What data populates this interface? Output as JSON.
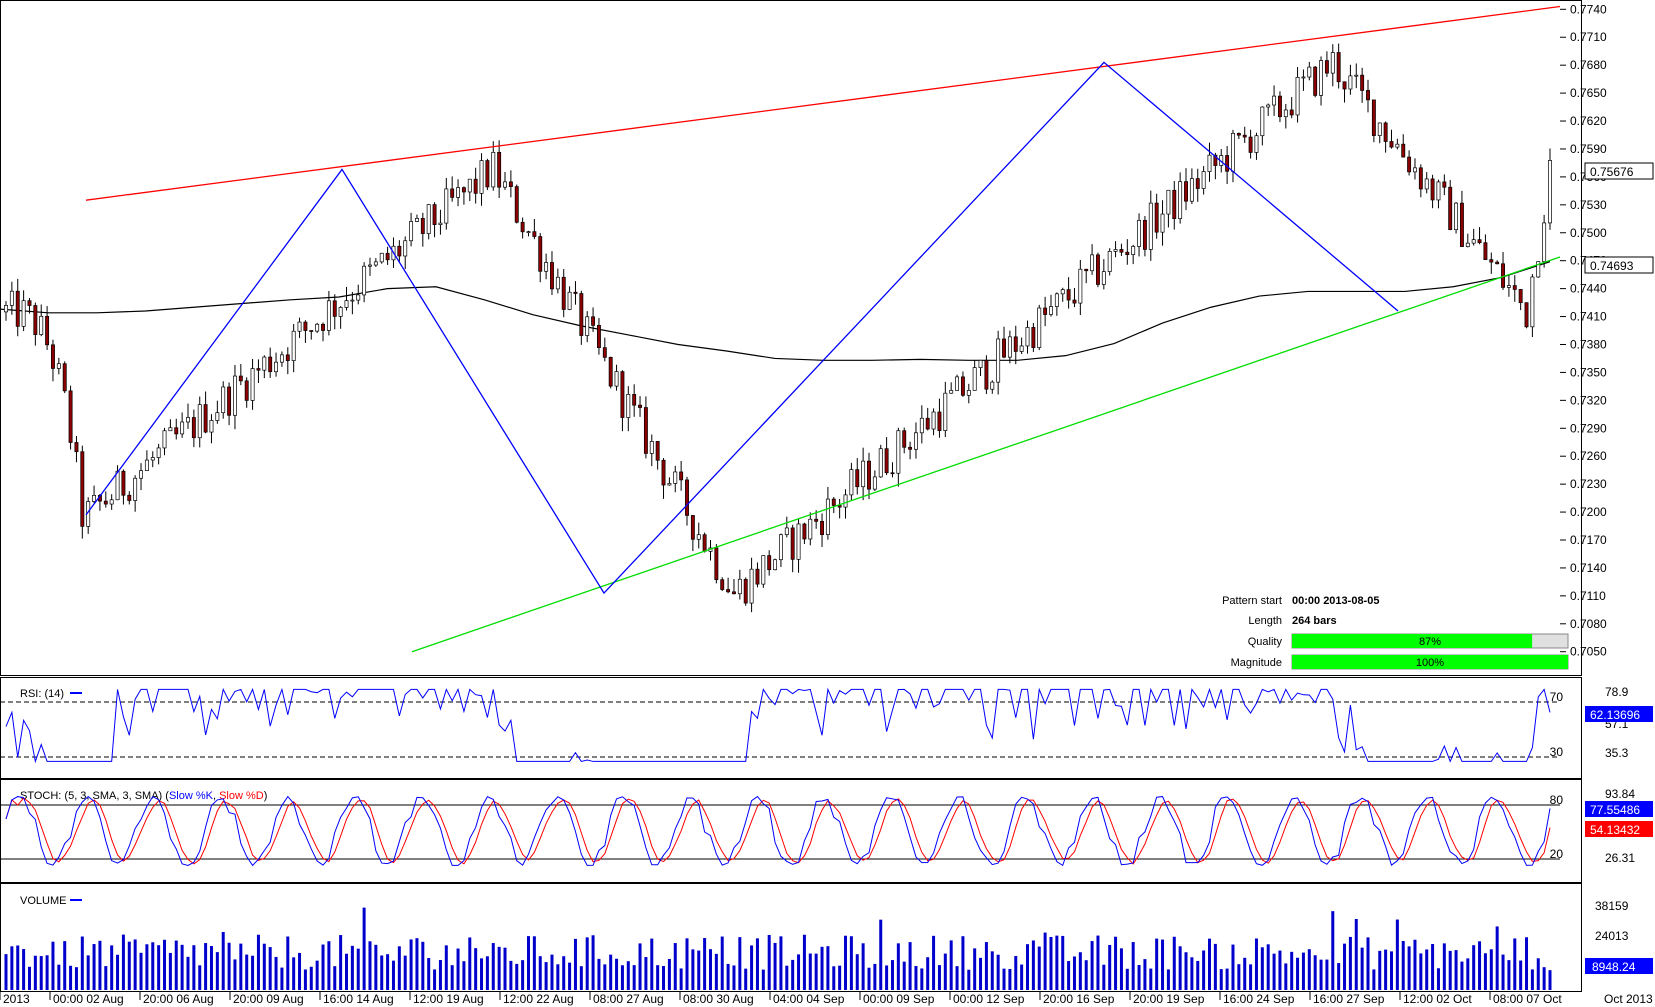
{
  "chart_data": [
    {
      "type": "candlestick",
      "pane": "price",
      "ylim": [
        0.7025,
        0.775
      ],
      "y_ticks": [
        "0.7740",
        "0.7710",
        "0.7680",
        "0.7650",
        "0.7620",
        "0.7590",
        "0.7560",
        "0.7530",
        "0.7500",
        "0.7470",
        "0.7440",
        "0.7410",
        "0.7380",
        "0.7350",
        "0.7320",
        "0.7290",
        "0.7260",
        "0.7230",
        "0.7200",
        "0.7170",
        "0.7140",
        "0.7110",
        "0.7080",
        "0.7050"
      ],
      "current_price_label": "0.75676",
      "current_price": 0.75676,
      "ma_price_label": "0.74693",
      "ma_price": 0.74693,
      "zigzag_prices": [
        0.7197,
        0.7568,
        0.7113,
        0.7683,
        0.7416
      ],
      "resistance_line_prices": [
        0.7535,
        0.7743
      ],
      "support_line_prices": [
        0.705,
        0.7474
      ],
      "moving_average": [
        0.7418,
        0.7414,
        0.7414,
        0.7416,
        0.742,
        0.7424,
        0.7428,
        0.7431,
        0.744,
        0.7442,
        0.7428,
        0.7412,
        0.74,
        0.739,
        0.738,
        0.7373,
        0.7365,
        0.7363,
        0.7363,
        0.7364,
        0.7363,
        0.7363,
        0.7368,
        0.7381,
        0.7403,
        0.742,
        0.7432,
        0.7437,
        0.7437,
        0.7437,
        0.7442,
        0.7452,
        0.7469
      ],
      "pattern_info": {
        "pattern_start_label": "Pattern start",
        "pattern_start_value": "00:00 2013-08-05",
        "length_label": "Length",
        "length_value": "264 bars",
        "quality_label": "Quality",
        "quality_value": "87%",
        "quality_fraction": 0.87,
        "magnitude_label": "Magnitude",
        "magnitude_value": "100%",
        "magnitude_fraction": 1.0
      }
    },
    {
      "type": "line",
      "pane": "rsi",
      "title": "RSI: (14)",
      "ylim": [
        15,
        85
      ],
      "levels": [
        70,
        30
      ],
      "level_labels": [
        "70",
        "30"
      ],
      "scale_labels": [
        "78.9",
        "57.1",
        "35.3"
      ],
      "current_label": "62.13696",
      "current": 62.13696
    },
    {
      "type": "line",
      "pane": "stoch",
      "title_prefix": "STOCH: (5, 3, SMA, 3, SMA) (",
      "series_names": [
        "Slow %K",
        "Slow %D"
      ],
      "ylim": [
        0,
        100
      ],
      "levels": [
        80,
        20
      ],
      "level_labels": [
        "80",
        "20"
      ],
      "scale_labels": [
        "93.84",
        "26.31"
      ],
      "k_label": "77.55486",
      "d_label": "54.13432",
      "k_current": 77.55486,
      "d_current": 54.13432
    },
    {
      "type": "bar",
      "pane": "volume",
      "title": "VOLUME",
      "ylim": [
        0,
        46000
      ],
      "scale_labels": [
        "38159",
        "24013"
      ],
      "current_label": "8948.24",
      "current": 8948.24
    }
  ],
  "x_labels": [
    "2013",
    "00:00 02 Aug",
    "20:00 06 Aug",
    "20:00 09 Aug",
    "16:00 14 Aug",
    "12:00 19 Aug",
    "12:00 22 Aug",
    "08:00 27 Aug",
    "08:00 30 Aug",
    "04:00 04 Sep",
    "00:00 09 Sep",
    "00:00 12 Sep",
    "20:00 16 Sep",
    "20:00 19 Sep",
    "16:00 24 Sep",
    "16:00 27 Sep",
    "12:00 02 Oct",
    "08:00 07 Oct"
  ],
  "x_right_label": "Oct 2013",
  "colors": {
    "bull": "#ffffff",
    "bear": "#8b0000",
    "wick": "#000000",
    "zigzag": "#0000ff",
    "resistance": "#ff0000",
    "support": "#00dd00",
    "ma": "#000000",
    "rsi": "#0000ff",
    "stoch_k": "#0000ff",
    "stoch_d": "#ff0000",
    "volume": "#0000cc",
    "progress": "#00ff00",
    "label_blue": "#0000ff",
    "label_red": "#ff0000"
  }
}
